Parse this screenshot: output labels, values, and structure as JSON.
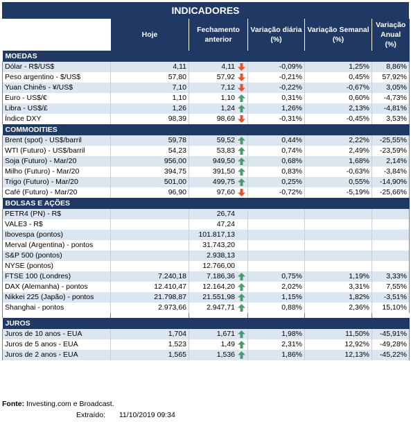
{
  "title": "INDICADORES",
  "columns": [
    "Hoje",
    "Fechamento anterior",
    "Variação diária (%)",
    "Variação Semanal (%)",
    "Variação Anual (%)"
  ],
  "sections": [
    {
      "name": "MOEDAS",
      "rows": [
        {
          "name": "Dólar - R$/US$",
          "hoje": "4,11",
          "fech": "4,11",
          "dir": "down",
          "dia": "-0,09%",
          "sem": "1,25%",
          "ano": "8,86%"
        },
        {
          "name": "Peso argentino - $/US$",
          "hoje": "57,80",
          "fech": "57,92",
          "dir": "down",
          "dia": "-0,21%",
          "sem": "0,45%",
          "ano": "57,92%"
        },
        {
          "name": "Yuan Chinês - ¥/US$",
          "hoje": "7,10",
          "fech": "7,12",
          "dir": "down",
          "dia": "-0,22%",
          "sem": "-0,67%",
          "ano": "3,05%"
        },
        {
          "name": "Euro - US$/€",
          "hoje": "1,10",
          "fech": "1,10",
          "dir": "up",
          "dia": "0,31%",
          "sem": "0,60%",
          "ano": "-4,73%"
        },
        {
          "name": "Libra - US$/£",
          "hoje": "1,26",
          "fech": "1,24",
          "dir": "up",
          "dia": "1,26%",
          "sem": "2,13%",
          "ano": "-4,81%"
        },
        {
          "name": "Índice DXY",
          "hoje": "98,39",
          "fech": "98,69",
          "dir": "down",
          "dia": "-0,31%",
          "sem": "-0,45%",
          "ano": "3,53%"
        }
      ]
    },
    {
      "name": "COMMODITIES",
      "rows": [
        {
          "name": "Brent (spot) - US$/barril",
          "hoje": "59,78",
          "fech": "59,52",
          "dir": "up",
          "dia": "0,44%",
          "sem": "2,22%",
          "ano": "-25,55%"
        },
        {
          "name": "WTI (Futuro) - US$/barril",
          "hoje": "54,23",
          "fech": "53,83",
          "dir": "up",
          "dia": "0,74%",
          "sem": "2,49%",
          "ano": "-23,59%"
        },
        {
          "name": "Soja (Futuro) - Mar/20",
          "hoje": "956,00",
          "fech": "949,50",
          "dir": "up",
          "dia": "0,68%",
          "sem": "1,68%",
          "ano": "2,14%"
        },
        {
          "name": "Milho (Futuro) - Mar/20",
          "hoje": "394,75",
          "fech": "391,50",
          "dir": "up",
          "dia": "0,83%",
          "sem": "-0,63%",
          "ano": "-3,84%"
        },
        {
          "name": "Trigo (Futuro) - Mar/20",
          "hoje": "501,00",
          "fech": "499,75",
          "dir": "up",
          "dia": "0,25%",
          "sem": "0,55%",
          "ano": "-14,90%"
        },
        {
          "name": "Café (Futuro) - Mar/20",
          "hoje": "96,90",
          "fech": "97,60",
          "dir": "down",
          "dia": "-0,72%",
          "sem": "-5,19%",
          "ano": "-25,66%"
        }
      ]
    },
    {
      "name": "BOLSAS E AÇÕES",
      "rows": [
        {
          "name": "PETR4 (PN) - R$",
          "hoje": "",
          "fech": "26,74",
          "dir": "",
          "dia": "",
          "sem": "",
          "ano": ""
        },
        {
          "name": "VALE3 - R$",
          "hoje": "",
          "fech": "47,24",
          "dir": "",
          "dia": "",
          "sem": "",
          "ano": ""
        },
        {
          "name": "Ibovespa (pontos)",
          "hoje": "",
          "fech": "101.817,13",
          "dir": "",
          "dia": "",
          "sem": "",
          "ano": ""
        },
        {
          "name": "Merval (Argentina) - pontos",
          "hoje": "",
          "fech": "31.743,20",
          "dir": "",
          "dia": "",
          "sem": "",
          "ano": ""
        },
        {
          "name": "S&P 500 (pontos)",
          "hoje": "",
          "fech": "2.938,13",
          "dir": "",
          "dia": "",
          "sem": "",
          "ano": ""
        },
        {
          "name": "NYSE (pontos)",
          "hoje": "",
          "fech": "12.766,00",
          "dir": "",
          "dia": "",
          "sem": "",
          "ano": ""
        },
        {
          "name": "FTSE 100 (Londres)",
          "hoje": "7.240,18",
          "fech": "7.186,36",
          "dir": "up",
          "dia": "0,75%",
          "sem": "1,19%",
          "ano": "3,33%"
        },
        {
          "name": "DAX (Alemanha) - pontos",
          "hoje": "12.410,47",
          "fech": "12.164,20",
          "dir": "up",
          "dia": "2,02%",
          "sem": "3,31%",
          "ano": "7,55%"
        },
        {
          "name": "Nikkei 225 (Japão) - pontos",
          "hoje": "21.798,87",
          "fech": "21.551,98",
          "dir": "up",
          "dia": "1,15%",
          "sem": "1,82%",
          "ano": "-3,51%"
        },
        {
          "name": "Shanghai - pontos",
          "hoje": "2.973,66",
          "fech": "2.947,71",
          "dir": "up",
          "dia": "0,88%",
          "sem": "2,36%",
          "ano": "15,10%"
        }
      ]
    },
    {
      "name": "JUROS",
      "rows": [
        {
          "name": "Juros de 10 anos - EUA",
          "hoje": "1,704",
          "fech": "1,671",
          "dir": "up",
          "dia": "1,98%",
          "sem": "11,50%",
          "ano": "-45,91%"
        },
        {
          "name": "Juros de 5 anos - EUA",
          "hoje": "1,523",
          "fech": "1,49",
          "dir": "up",
          "dia": "2,31%",
          "sem": "12,92%",
          "ano": "-49,28%"
        },
        {
          "name": "Juros de 2 anos - EUA",
          "hoje": "1,565",
          "fech": "1,536",
          "dir": "up",
          "dia": "1,86%",
          "sem": "12,13%",
          "ano": "-45,22%"
        }
      ]
    }
  ],
  "footer": {
    "source_label": "Fonte:",
    "source_text": " Investing.com e Broadcast.",
    "extracted_label": "Extraído:",
    "extracted_value": "11/10/2019 09:34"
  },
  "colors": {
    "header": "#1f3864",
    "alt_row": "#dce6f1",
    "up_arrow": "#4a9b6f",
    "down_arrow": "#e8512f"
  }
}
